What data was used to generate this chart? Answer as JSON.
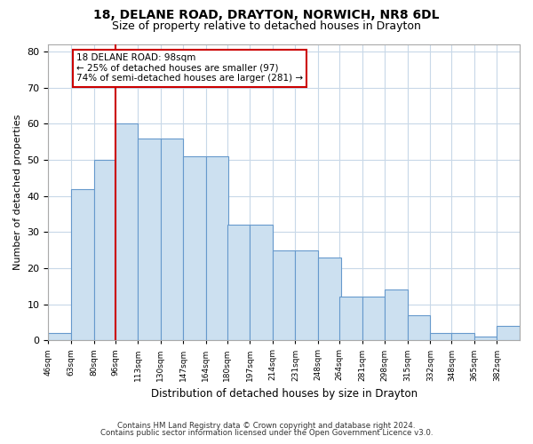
{
  "title1": "18, DELANE ROAD, DRAYTON, NORWICH, NR8 6DL",
  "title2": "Size of property relative to detached houses in Drayton",
  "xlabel": "Distribution of detached houses by size in Drayton",
  "ylabel": "Number of detached properties",
  "footnote1": "Contains HM Land Registry data © Crown copyright and database right 2024.",
  "footnote2": "Contains public sector information licensed under the Open Government Licence v3.0.",
  "annotation_text": "18 DELANE ROAD: 98sqm\n← 25% of detached houses are smaller (97)\n74% of semi-detached houses are larger (281) →",
  "bar_color": "#cce0f0",
  "bar_edge_color": "#6699cc",
  "red_line_color": "#cc0000",
  "annotation_box_color": "#ffffff",
  "annotation_box_edge": "#cc0000",
  "ylim": [
    0,
    82
  ],
  "yticks": [
    0,
    10,
    20,
    30,
    40,
    50,
    60,
    70,
    80
  ],
  "grid_color": "#c8d8e8",
  "bg_color": "#ffffff",
  "bin_edges": [
    46,
    63,
    80,
    96,
    113,
    130,
    147,
    164,
    180,
    197,
    214,
    231,
    248,
    264,
    281,
    298,
    315,
    332,
    348,
    365,
    382
  ],
  "bar_vals": [
    2,
    42,
    50,
    60,
    56,
    56,
    51,
    51,
    32,
    32,
    25,
    25,
    23,
    12,
    12,
    14,
    7,
    2,
    2,
    1,
    4
  ],
  "tick_labels": [
    "46sqm",
    "63sqm",
    "80sqm",
    "96sqm",
    "113sqm",
    "130sqm",
    "147sqm",
    "164sqm",
    "180sqm",
    "197sqm",
    "214sqm",
    "231sqm",
    "248sqm",
    "264sqm",
    "281sqm",
    "298sqm",
    "315sqm",
    "332sqm",
    "348sqm",
    "365sqm",
    "382sqm"
  ]
}
